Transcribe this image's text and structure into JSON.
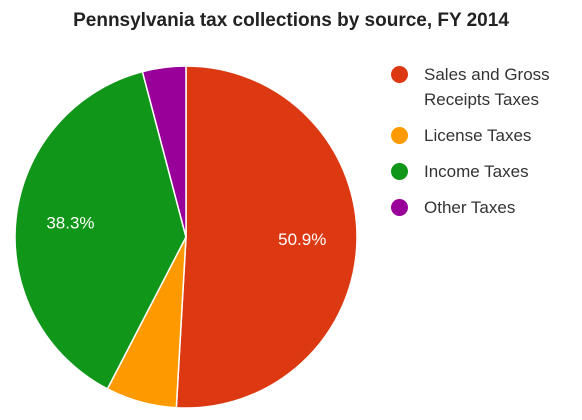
{
  "chart_data": {
    "type": "pie",
    "title": "Pennsylvania tax collections by source, FY 2014",
    "categories": [
      "Sales and Gross Receipts Taxes",
      "License Taxes",
      "Income Taxes",
      "Other Taxes"
    ],
    "values": [
      50.9,
      6.7,
      38.3,
      4.1
    ],
    "value_unit": "%",
    "data_labels": [
      "50.9%",
      "",
      "38.3%",
      ""
    ],
    "colors": [
      "#dc3912",
      "#ff9900",
      "#109618",
      "#990099"
    ],
    "legend_position": "right",
    "start_angle_deg": 0,
    "direction": "clockwise"
  }
}
